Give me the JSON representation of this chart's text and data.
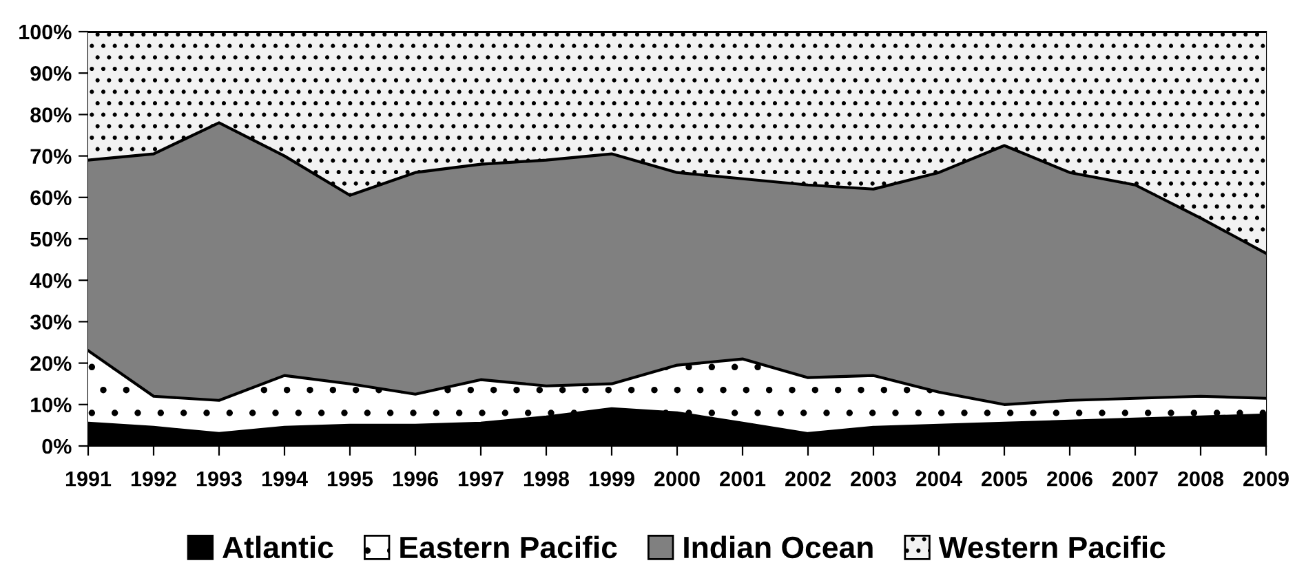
{
  "chart_data": {
    "type": "area",
    "stacked": true,
    "categories": [
      "1991",
      "1992",
      "1993",
      "1994",
      "1995",
      "1996",
      "1997",
      "1998",
      "1999",
      "2000",
      "2001",
      "2002",
      "2003",
      "2004",
      "2005",
      "2006",
      "2007",
      "2008",
      "2009"
    ],
    "series": [
      {
        "name": "Atlantic",
        "color": "#000000",
        "values": [
          5.5,
          4.5,
          3,
          4.5,
          5,
          5,
          5.5,
          7,
          9,
          8,
          5.5,
          3,
          4.5,
          5,
          5.5,
          6,
          6.5,
          7,
          7.5
        ]
      },
      {
        "name": "Eastern Pacific",
        "color": "#ffffff",
        "values": [
          17.5,
          7.5,
          8,
          12.5,
          10,
          7.5,
          10.5,
          7.5,
          6,
          11.5,
          15.5,
          13.5,
          12.5,
          8,
          4.5,
          5,
          5,
          5,
          4
        ]
      },
      {
        "name": "Indian Ocean",
        "color": "#808080",
        "values": [
          46,
          58.5,
          67,
          53,
          45.5,
          53.5,
          52,
          54.5,
          55.5,
          46.5,
          43.5,
          46.5,
          45,
          53,
          62.5,
          55,
          51.5,
          43,
          35
        ]
      },
      {
        "name": "Western Pacific",
        "color": "#f2f2f2",
        "values": [
          31,
          29.5,
          22,
          30,
          39.5,
          34,
          32,
          31,
          29.5,
          34,
          35.5,
          37,
          38,
          34,
          27.5,
          34,
          37,
          45,
          53.5
        ]
      }
    ],
    "ylim": [
      0,
      100
    ],
    "yticks": [
      {
        "value": 0,
        "label": "0%"
      },
      {
        "value": 10,
        "label": "10%"
      },
      {
        "value": 20,
        "label": "20%"
      },
      {
        "value": 30,
        "label": "30%"
      },
      {
        "value": 40,
        "label": "40%"
      },
      {
        "value": 50,
        "label": "50%"
      },
      {
        "value": 60,
        "label": "60%"
      },
      {
        "value": 70,
        "label": "70%"
      },
      {
        "value": 80,
        "label": "80%"
      },
      {
        "value": 90,
        "label": "90%"
      },
      {
        "value": 100,
        "label": "100%"
      }
    ],
    "legend": "bottom"
  }
}
